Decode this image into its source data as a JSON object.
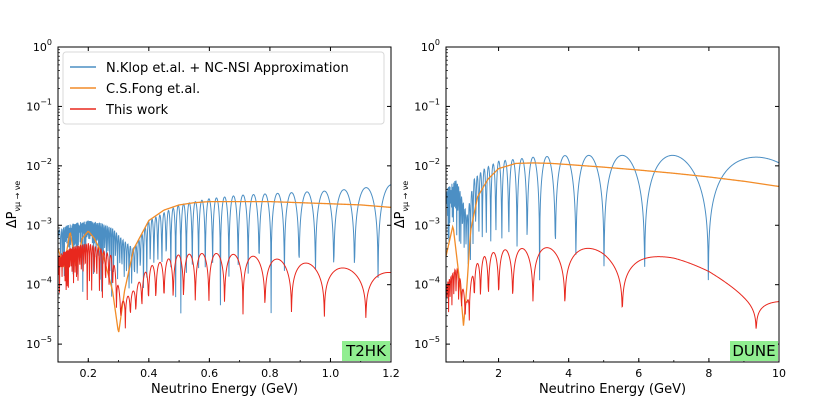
{
  "chart_data": [
    {
      "type": "line",
      "panel": "left",
      "xlabel": "Neutrino Energy (GeV)",
      "ylabel_main": "ΔP",
      "ylabel_sub": "νμ → νe",
      "xlim": [
        0.1,
        1.2
      ],
      "ylim": [
        5e-06,
        1
      ],
      "yscale": "log",
      "xticks": [
        0.2,
        0.4,
        0.6,
        0.8,
        1.0,
        1.2
      ],
      "xtick_labels": [
        "0.2",
        "0.4",
        "0.6",
        "0.8",
        "1.0",
        "1.2"
      ],
      "ytick_labels": [
        {
          "base": "10",
          "exp": "−5"
        },
        {
          "base": "10",
          "exp": "−4"
        },
        {
          "base": "10",
          "exp": "−3"
        },
        {
          "base": "10",
          "exp": "−2"
        },
        {
          "base": "10",
          "exp": "−1"
        },
        {
          "base": "10",
          "exp": "0"
        }
      ],
      "ytick_values": [
        1e-05,
        0.0001,
        0.001,
        0.01,
        0.1,
        1
      ],
      "badge": "T2HK",
      "badge_color": "#90EE90",
      "legend": {
        "placement": "top",
        "entries": [
          {
            "label": "N.Klop et.al. + NC-NSI Approximation",
            "color": "#4C8FC4"
          },
          {
            "label": "C.S.Fong et.al.",
            "color": "#F28C28"
          },
          {
            "label": "This work",
            "color": "#E8281E"
          }
        ]
      },
      "series": [
        {
          "name": "N.Klop et.al. + NC-NSI Approximation",
          "color": "#4C8FC4",
          "kind": "oscillating",
          "envelope_x": [
            0.1,
            0.13,
            0.16,
            0.2,
            0.24,
            0.28,
            0.31,
            0.35,
            0.4,
            0.5,
            0.6,
            0.7,
            0.8,
            0.9,
            1.0,
            1.1,
            1.2
          ],
          "envelope_y": [
            0.0008,
            0.001,
            0.0011,
            0.0012,
            0.0011,
            0.0009,
            0.0006,
            0.0004,
            0.0012,
            0.0022,
            0.0028,
            0.0032,
            0.0034,
            0.0036,
            0.0038,
            0.0042,
            0.0048
          ],
          "trough_y": 6e-06
        },
        {
          "name": "C.S.Fong et.al.",
          "color": "#F28C28",
          "kind": "smooth",
          "x": [
            0.1,
            0.12,
            0.14,
            0.16,
            0.18,
            0.2,
            0.22,
            0.25,
            0.28,
            0.3,
            0.32,
            0.35,
            0.4,
            0.45,
            0.5,
            0.55,
            0.6,
            0.7,
            0.8,
            0.9,
            1.0,
            1.1,
            1.2
          ],
          "y": [
            0.0004,
            0.0002,
            0.0008,
            0.0002,
            0.0006,
            0.0008,
            0.0006,
            0.0003,
            8e-05,
            1.5e-05,
            8e-05,
            0.0004,
            0.0012,
            0.0018,
            0.0022,
            0.0024,
            0.0025,
            0.0025,
            0.0025,
            0.0024,
            0.0023,
            0.0022,
            0.002
          ]
        },
        {
          "name": "This work",
          "color": "#E8281E",
          "kind": "oscillating",
          "envelope_x": [
            0.1,
            0.13,
            0.16,
            0.2,
            0.24,
            0.28,
            0.31,
            0.35,
            0.4,
            0.5,
            0.6,
            0.7,
            0.8,
            0.9,
            1.0,
            1.1,
            1.2
          ],
          "envelope_y": [
            0.0003,
            0.0004,
            0.00045,
            0.0005,
            0.0004,
            0.0003,
            5e-05,
            8e-05,
            0.0002,
            0.00032,
            0.00034,
            0.00032,
            0.00028,
            0.00024,
            0.0002,
            0.00018,
            0.00016
          ],
          "trough_y": 6e-06
        }
      ]
    },
    {
      "type": "line",
      "panel": "right",
      "xlabel": "Neutrino Energy (GeV)",
      "ylabel_main": "ΔP",
      "ylabel_sub": "νμ → νe",
      "xlim": [
        0.5,
        10
      ],
      "ylim": [
        5e-06,
        1
      ],
      "yscale": "log",
      "xticks": [
        2,
        4,
        6,
        8,
        10
      ],
      "xtick_labels": [
        "2",
        "4",
        "6",
        "8",
        "10"
      ],
      "ytick_labels": [
        {
          "base": "10",
          "exp": "−5"
        },
        {
          "base": "10",
          "exp": "−4"
        },
        {
          "base": "10",
          "exp": "−3"
        },
        {
          "base": "10",
          "exp": "−2"
        },
        {
          "base": "10",
          "exp": "−1"
        },
        {
          "base": "10",
          "exp": "0"
        }
      ],
      "ytick_values": [
        1e-05,
        0.0001,
        0.001,
        0.01,
        0.1,
        1
      ],
      "badge": "DUNE",
      "badge_color": "#90EE90",
      "series": [
        {
          "name": "N.Klop et.al. + NC-NSI Approximation",
          "color": "#4C8FC4",
          "kind": "oscillating",
          "envelope_x": [
            0.5,
            0.8,
            1.1,
            1.3,
            1.6,
            2.0,
            3.0,
            4.0,
            5.0,
            6.0,
            7.0,
            8.0,
            9.0,
            10.0
          ],
          "envelope_y": [
            0.004,
            0.006,
            0.0015,
            0.006,
            0.009,
            0.012,
            0.014,
            0.015,
            0.015,
            0.015,
            0.015,
            0.015,
            0.014,
            0.014
          ],
          "trough_y": 6e-06
        },
        {
          "name": "C.S.Fong et.al.",
          "color": "#F28C28",
          "kind": "smooth",
          "x": [
            0.5,
            0.7,
            0.9,
            1.0,
            1.1,
            1.2,
            1.4,
            1.7,
            2.0,
            2.5,
            3.0,
            3.5,
            4.0,
            5.0,
            6.0,
            7.0,
            8.0,
            9.0,
            10.0
          ],
          "y": [
            0.0003,
            0.001,
            0.0001,
            2e-05,
            0.0001,
            0.0008,
            0.003,
            0.006,
            0.009,
            0.011,
            0.0112,
            0.011,
            0.0105,
            0.0095,
            0.0085,
            0.0075,
            0.0065,
            0.0055,
            0.0045
          ]
        },
        {
          "name": "This work",
          "color": "#E8281E",
          "kind": "oscillating",
          "envelope_x": [
            0.5,
            0.8,
            1.1,
            1.3,
            1.6,
            2.0,
            3.0,
            4.0,
            5.0,
            6.0,
            7.0,
            8.0,
            9.0,
            10.0
          ],
          "envelope_y": [
            0.0001,
            0.0002,
            5e-05,
            0.0002,
            0.0003,
            0.00038,
            0.00042,
            0.00042,
            0.0004,
            0.00035,
            0.00028,
            0.0002,
            0.00012,
            8e-05
          ],
          "trough_y": 6e-06
        }
      ]
    }
  ]
}
